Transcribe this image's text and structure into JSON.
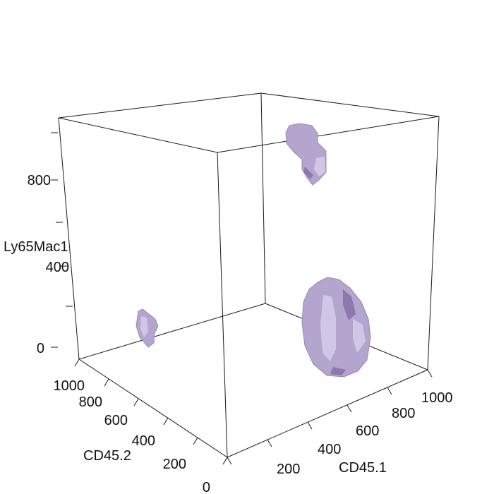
{
  "chart_data": {
    "type": "scatter",
    "subtype": "3d-density-isosurface",
    "title": "",
    "color": "#b4a5cf",
    "axes": {
      "z": {
        "label": "Ly65Mac1",
        "ticks": [
          "0",
          "400",
          "800"
        ]
      },
      "y": {
        "label": "CD45.2",
        "ticks": [
          "0",
          "200",
          "400",
          "600",
          "800",
          "1000"
        ]
      },
      "x": {
        "label": "CD45.1",
        "ticks": [
          "200",
          "400",
          "600",
          "800",
          "1000"
        ]
      }
    },
    "clusters": [
      {
        "CD45.1": 150,
        "CD45.2": 700,
        "Ly65Mac1": 180
      },
      {
        "CD45.1": 750,
        "CD45.2": 850,
        "Ly65Mac1": 1000
      },
      {
        "CD45.1": 870,
        "CD45.2": 200,
        "Ly65Mac1": 250
      }
    ]
  }
}
